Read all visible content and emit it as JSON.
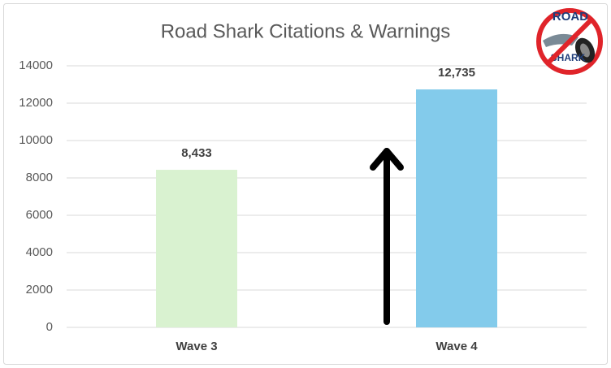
{
  "chart_data": {
    "type": "bar",
    "title": "Road Shark Citations & Warnings",
    "categories": [
      "Wave 3",
      "Wave 4"
    ],
    "values": [
      8433,
      12735
    ],
    "value_labels": [
      "8,433",
      "12,735"
    ],
    "colors": [
      "#d9f2d0",
      "#83cbeb"
    ],
    "ylim": [
      0,
      14000
    ],
    "yticks": [
      0,
      2000,
      4000,
      6000,
      8000,
      10000,
      12000,
      14000
    ],
    "grid": true,
    "annotations": [
      "ROAD",
      "SHARK"
    ]
  }
}
